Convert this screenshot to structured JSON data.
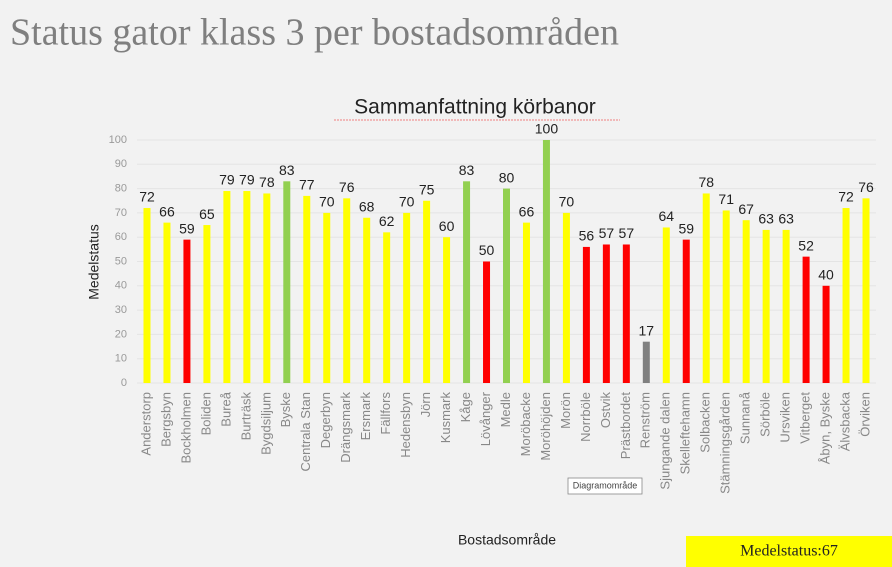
{
  "page_title": "Status gator klass 3 per bostadsområden",
  "tooltip": "Diagramområde",
  "summary": "Medelstatus:67",
  "chart_data": {
    "type": "bar",
    "title": "Sammanfattning körbanor",
    "ylabel": "Medelstatus",
    "xlabel": "Bostadsområde",
    "categories": [
      "Anderstorp",
      "Bergsbyn",
      "Bockholmen",
      "Boliden",
      "Bureå",
      "Burträsk",
      "Bygdsiljum",
      "Byske",
      "Centrala Stan",
      "Degerbyn",
      "Drängsmark",
      "Ersmark",
      "Fällfors",
      "Hedensbyn",
      "Jörn",
      "Kusmark",
      "Kåge",
      "Lövånger",
      "Medle",
      "Moröbacke",
      "Moröhöjden",
      "Morön",
      "Norrböle",
      "Ostvik",
      "Prästbordet",
      "Renström",
      "Sjungande dalen",
      "Skelleftehamn",
      "Solbacken",
      "Stämningsgården",
      "Sunnanå",
      "Sörböle",
      "Ursviken",
      "Vitberget",
      "Åbyn, Byske",
      "Älvsbacka",
      "Örviken"
    ],
    "values": [
      72,
      66,
      59,
      65,
      79,
      79,
      78,
      83,
      77,
      70,
      76,
      68,
      62,
      70,
      75,
      60,
      83,
      50,
      80,
      66,
      100,
      70,
      56,
      57,
      57,
      17,
      64,
      59,
      78,
      71,
      67,
      63,
      63,
      52,
      40,
      72,
      76
    ],
    "colors": [
      "#ffff00",
      "#ffff00",
      "#ff0000",
      "#ffff00",
      "#ffff00",
      "#ffff00",
      "#ffff00",
      "#92d050",
      "#ffff00",
      "#ffff00",
      "#ffff00",
      "#ffff00",
      "#ffff00",
      "#ffff00",
      "#ffff00",
      "#ffff00",
      "#92d050",
      "#ff0000",
      "#92d050",
      "#ffff00",
      "#92d050",
      "#ffff00",
      "#ff0000",
      "#ff0000",
      "#ff0000",
      "#808080",
      "#ffff00",
      "#ff0000",
      "#ffff00",
      "#ffff00",
      "#ffff00",
      "#ffff00",
      "#ffff00",
      "#ff0000",
      "#ff0000",
      "#ffff00",
      "#ffff00"
    ],
    "ylim": [
      0,
      100
    ],
    "yticks": [
      0,
      10,
      20,
      30,
      40,
      50,
      60,
      70,
      80,
      90,
      100
    ],
    "grid": true
  }
}
